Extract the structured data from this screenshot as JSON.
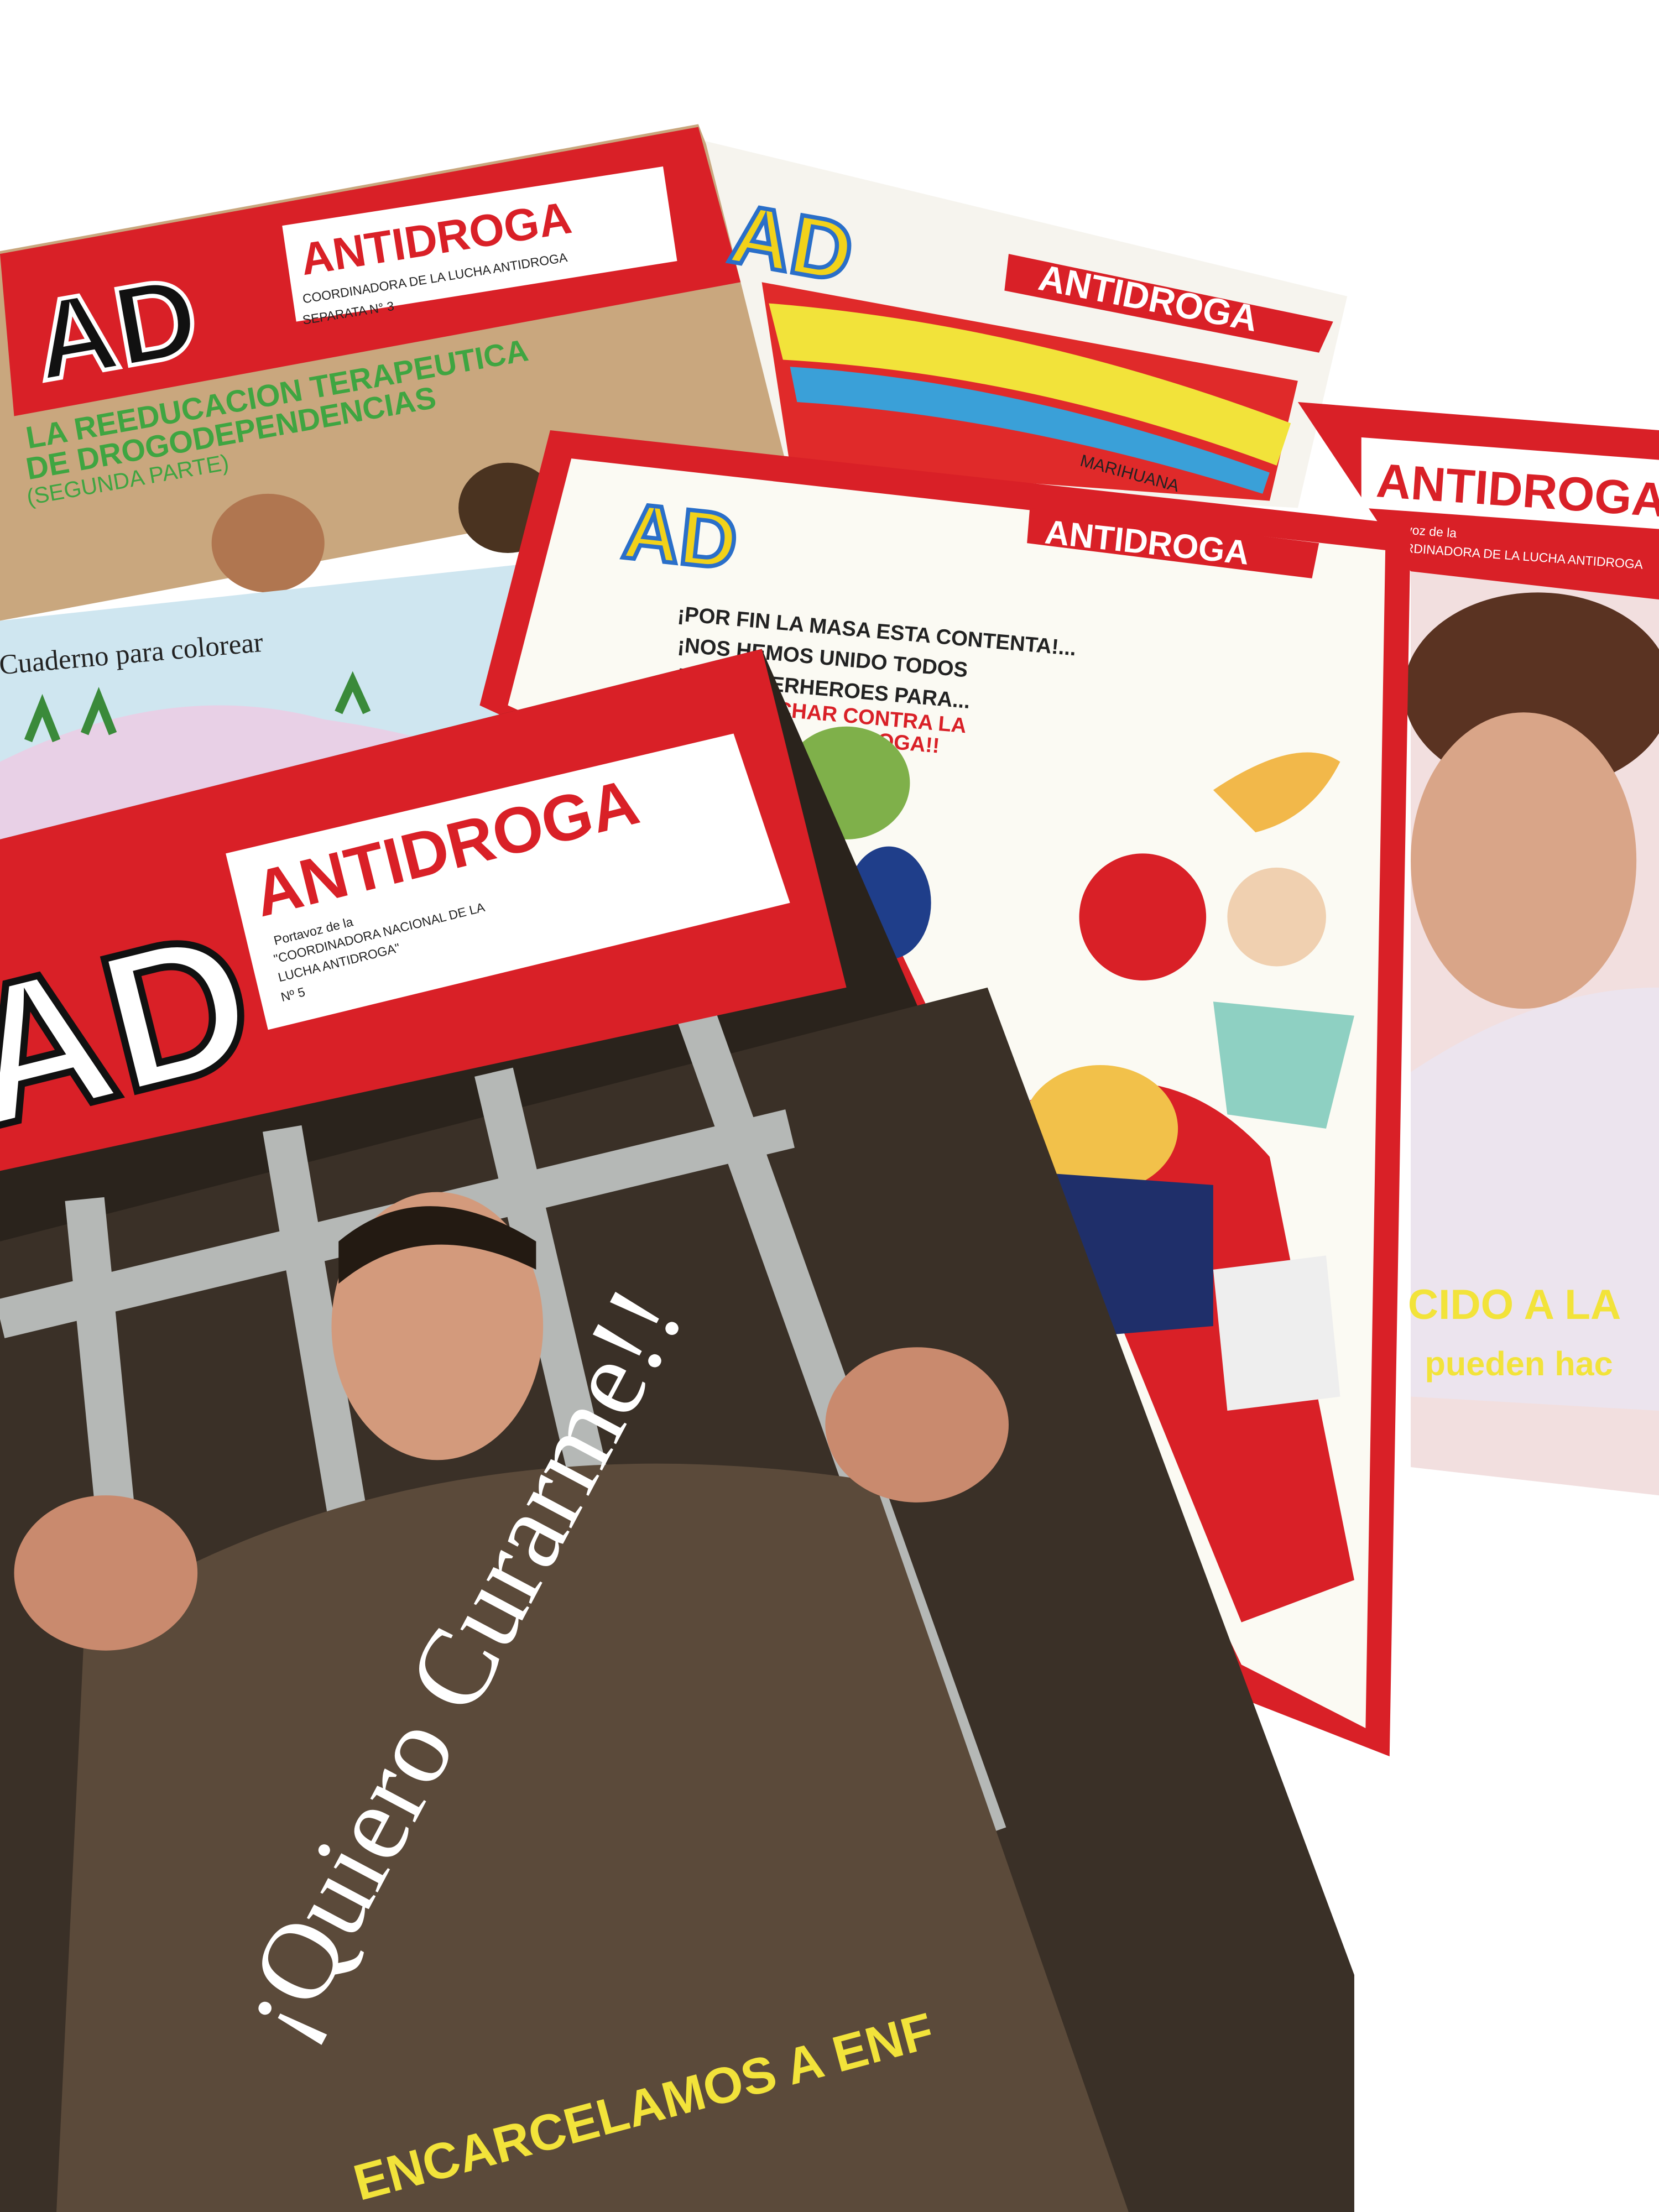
{
  "magazines": [
    {
      "logo": "AD",
      "title": "ANTIDROGA",
      "subtitle": "COORDINADORA DE LA LUCHA ANTIDROGA",
      "issue": "SEPARATA N° 3",
      "headline": "LA REEDUCACION TERAPEUTICA",
      "headline_2": "DE DROGODEPENDENCIAS",
      "headline_3": "(SEGUNDA PARTE)"
    },
    {
      "logo": "AD",
      "title": "ANTIDROGA",
      "caption": "MARIHUANA"
    },
    {
      "title": "ANTIDROGA",
      "subtitle": "Portavoz de la",
      "subtitle_2": "COORDINADORA DE LA LUCHA ANTIDROGA",
      "headline": "CIDO A LA",
      "headline_2": "pueden hac"
    },
    {
      "title": "Cuaderno para colorear"
    },
    {
      "logo": "AD",
      "title": "ANTIDROGA",
      "speech": "¡POR FIN LA MASA ESTA CONTENTA!...",
      "speech_2": "¡NOS HEMOS UNIDO TODOS",
      "speech_3": "LOS SUPERHEROES PARA...",
      "speech_4": "LUCHAR CONTRA LA",
      "speech_5": "DROGA!!"
    },
    {
      "logo": "AD",
      "title": "ANTIDROGA",
      "subtitle": "Portavoz de la",
      "subtitle_2": "\"COORDINADORA NACIONAL DE LA",
      "subtitle_3": "LUCHA ANTIDROGA\"",
      "issue": "Nº 5",
      "headline": "¡Quiero Curarme!!",
      "footer": "ENCARCELAMOS A ENF"
    }
  ]
}
